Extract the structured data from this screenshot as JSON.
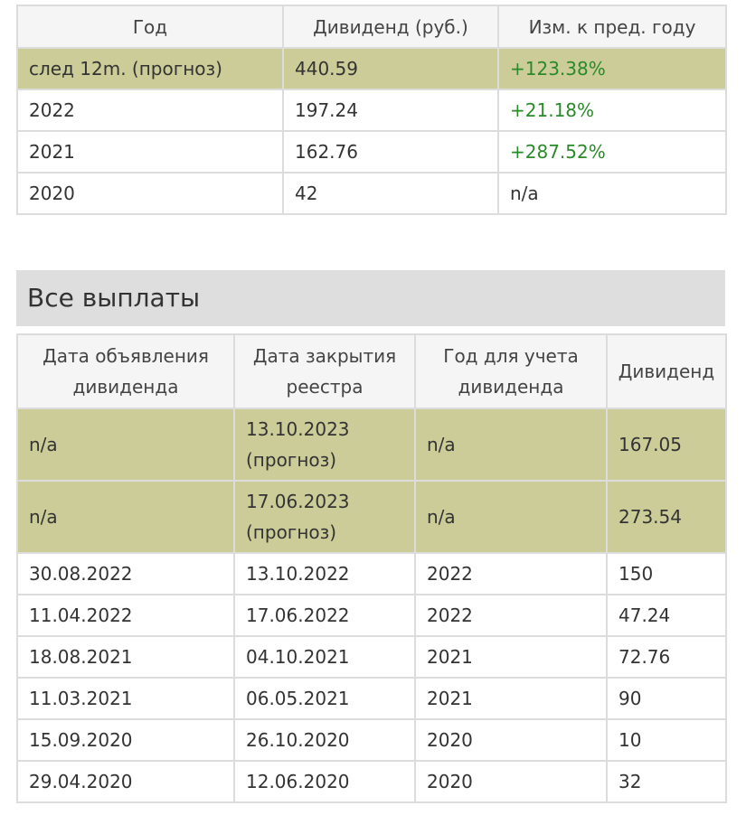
{
  "annual": {
    "headers": [
      "Год",
      "Дивиденд (руб.)",
      "Изм. к пред. году"
    ],
    "rows": [
      {
        "year": "след 12m. (прогноз)",
        "dividend": "440.59",
        "change": "+123.38%"
      },
      {
        "year": "2022",
        "dividend": "197.24",
        "change": "+21.18%"
      },
      {
        "year": "2021",
        "dividend": "162.76",
        "change": "+287.52%"
      },
      {
        "year": "2020",
        "dividend": "42",
        "change": "n/a"
      }
    ]
  },
  "payments_section": {
    "title": "Все выплаты",
    "headers": [
      "Дата объявления дивиденда",
      "Дата закрытия реестра",
      "Год для учета дивиденда",
      "Дивиденд"
    ],
    "rows": [
      {
        "announce": "n/a",
        "close": "13.10.2023 (прогноз)",
        "year": "n/a",
        "dividend": "167.05"
      },
      {
        "announce": "n/a",
        "close": "17.06.2023 (прогноз)",
        "year": "n/a",
        "dividend": "273.54"
      },
      {
        "announce": "30.08.2022",
        "close": "13.10.2022",
        "year": "2022",
        "dividend": "150"
      },
      {
        "announce": "11.04.2022",
        "close": "17.06.2022",
        "year": "2022",
        "dividend": "47.24"
      },
      {
        "announce": "18.08.2021",
        "close": "04.10.2021",
        "year": "2021",
        "dividend": "72.76"
      },
      {
        "announce": "11.03.2021",
        "close": "06.05.2021",
        "year": "2021",
        "dividend": "90"
      },
      {
        "announce": "15.09.2020",
        "close": "26.10.2020",
        "year": "2020",
        "dividend": "10"
      },
      {
        "announce": "29.04.2020",
        "close": "12.06.2020",
        "year": "2020",
        "dividend": "32"
      }
    ]
  },
  "colors": {
    "forecast_row_bg": "#cccc99",
    "positive_change": "#2a8a2a",
    "header_bg": "#f5f5f5",
    "section_bg": "#dedede",
    "border": "#dcdcdc"
  }
}
